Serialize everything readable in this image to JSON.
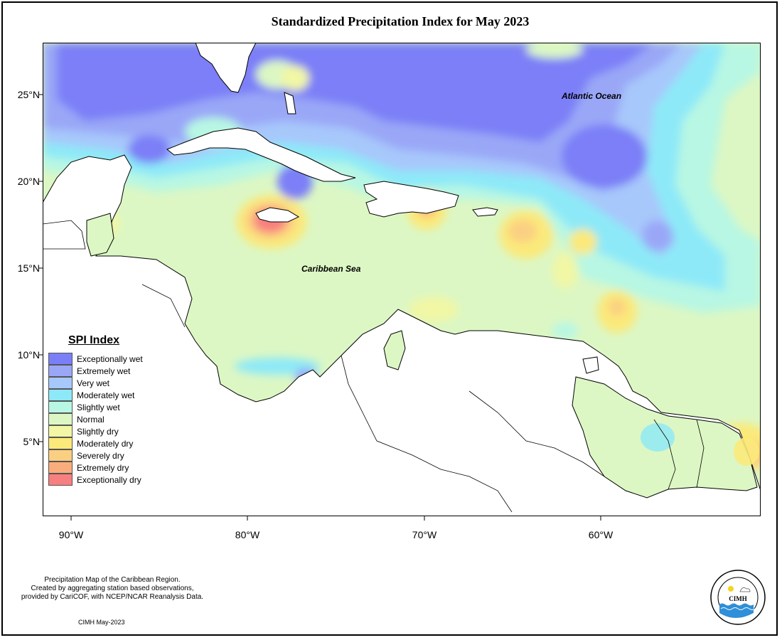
{
  "title": "Standardized Precipitation Index for May 2023",
  "lat_labels": [
    "25°N",
    "20°N",
    "15°N",
    "10°N",
    "5°N"
  ],
  "lon_labels": [
    "90°W",
    "80°W",
    "70°W",
    "60°W"
  ],
  "ocean_labels": {
    "atlantic": "Atlantic Ocean",
    "caribbean": "Caribbean Sea"
  },
  "legend": {
    "title": "SPI Index",
    "items": [
      {
        "label": "Exceptionally wet",
        "color": "#7b7ff7"
      },
      {
        "label": "Extremely wet",
        "color": "#9aa7f7"
      },
      {
        "label": "Very wet",
        "color": "#a7c8fb"
      },
      {
        "label": "Moderately wet",
        "color": "#8de9f8"
      },
      {
        "label": "Slightly wet",
        "color": "#b8f7e3"
      },
      {
        "label": "Normal",
        "color": "#dcf7c4"
      },
      {
        "label": "Slightly dry",
        "color": "#f1f7a4"
      },
      {
        "label": "Moderately dry",
        "color": "#fbe97a"
      },
      {
        "label": "Severely dry",
        "color": "#fbcf82"
      },
      {
        "label": "Extremely dry",
        "color": "#f9ad7c"
      },
      {
        "label": "Exceptionally dry",
        "color": "#f87f7f"
      }
    ]
  },
  "credit": {
    "line1": "Precipitation Map of the Caribbean Region.",
    "line2": "Created by aggregating station based observations,",
    "line3": "provided by CariCOF, with NCEP/NCAR Reanalysis Data.",
    "date": "CIMH May-2023"
  },
  "logo": {
    "text": "CIMH"
  }
}
